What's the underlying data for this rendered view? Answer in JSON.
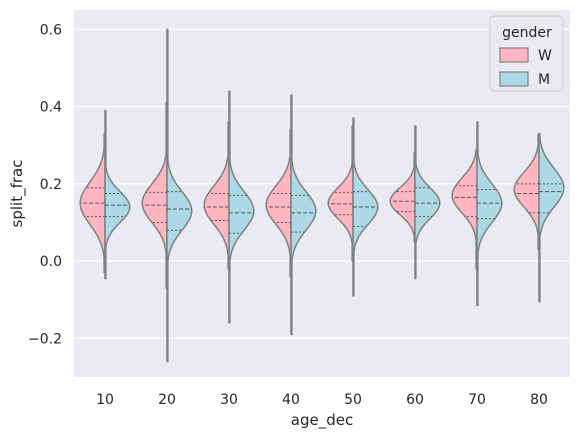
{
  "chart_data": {
    "type": "violin",
    "xlabel": "age_dec",
    "ylabel": "split_frac",
    "ylim": [
      -0.3,
      0.65
    ],
    "yticks": [
      -0.2,
      0.0,
      0.2,
      0.4,
      0.6
    ],
    "ytick_labels": [
      "−0.2",
      "0.0",
      "0.2",
      "0.4",
      "0.6"
    ],
    "categories": [
      "10",
      "20",
      "30",
      "40",
      "50",
      "60",
      "70",
      "80"
    ],
    "grid": true,
    "split": true,
    "inner": "quartile",
    "legend": {
      "title": "gender",
      "placement": "top-right",
      "entries": [
        {
          "label": "W",
          "color": "#ffb6c1"
        },
        {
          "label": "M",
          "color": "#add8e6"
        }
      ]
    },
    "colors": {
      "background": "#eaeaf2",
      "grid": "#ffffff",
      "outline": "#808080",
      "W": "#ffb6c1",
      "M": "#add8e6"
    },
    "series": [
      {
        "name": "W",
        "violins": [
          {
            "min": -0.03,
            "max": 0.33,
            "q1": 0.115,
            "median": 0.15,
            "q3": 0.19,
            "mode": 0.15,
            "spread": 0.055
          },
          {
            "min": -0.07,
            "max": 0.41,
            "q1": 0.1,
            "median": 0.145,
            "q3": 0.178,
            "mode": 0.15,
            "spread": 0.05
          },
          {
            "min": -0.02,
            "max": 0.36,
            "q1": 0.105,
            "median": 0.14,
            "q3": 0.175,
            "mode": 0.145,
            "spread": 0.05
          },
          {
            "min": -0.04,
            "max": 0.34,
            "q1": 0.1,
            "median": 0.14,
            "q3": 0.175,
            "mode": 0.145,
            "spread": 0.05
          },
          {
            "min": 0.0,
            "max": 0.35,
            "q1": 0.12,
            "median": 0.148,
            "q3": 0.178,
            "mode": 0.15,
            "spread": 0.04
          },
          {
            "min": 0.05,
            "max": 0.28,
            "q1": 0.128,
            "median": 0.155,
            "q3": 0.18,
            "mode": 0.155,
            "spread": 0.035
          },
          {
            "min": -0.02,
            "max": 0.29,
            "q1": 0.115,
            "median": 0.165,
            "q3": 0.195,
            "mode": 0.17,
            "spread": 0.045
          },
          {
            "min": 0.03,
            "max": 0.33,
            "q1": 0.125,
            "median": 0.175,
            "q3": 0.2,
            "mode": 0.185,
            "spread": 0.045
          }
        ]
      },
      {
        "name": "M",
        "violins": [
          {
            "min": -0.045,
            "max": 0.39,
            "q1": 0.115,
            "median": 0.145,
            "q3": 0.175,
            "mode": 0.14,
            "spread": 0.04
          },
          {
            "min": -0.26,
            "max": 0.6,
            "q1": 0.08,
            "median": 0.135,
            "q3": 0.18,
            "mode": 0.13,
            "spread": 0.05
          },
          {
            "min": -0.16,
            "max": 0.44,
            "q1": 0.072,
            "median": 0.125,
            "q3": 0.17,
            "mode": 0.13,
            "spread": 0.05
          },
          {
            "min": -0.19,
            "max": 0.43,
            "q1": 0.075,
            "median": 0.125,
            "q3": 0.17,
            "mode": 0.13,
            "spread": 0.05
          },
          {
            "min": -0.09,
            "max": 0.37,
            "q1": 0.09,
            "median": 0.14,
            "q3": 0.18,
            "mode": 0.14,
            "spread": 0.045
          },
          {
            "min": -0.045,
            "max": 0.35,
            "q1": 0.115,
            "median": 0.15,
            "q3": 0.19,
            "mode": 0.15,
            "spread": 0.04
          },
          {
            "min": -0.115,
            "max": 0.36,
            "q1": 0.11,
            "median": 0.15,
            "q3": 0.185,
            "mode": 0.15,
            "spread": 0.05
          },
          {
            "min": -0.105,
            "max": 0.33,
            "q1": 0.125,
            "median": 0.18,
            "q3": 0.2,
            "mode": 0.19,
            "spread": 0.05
          }
        ]
      }
    ]
  }
}
